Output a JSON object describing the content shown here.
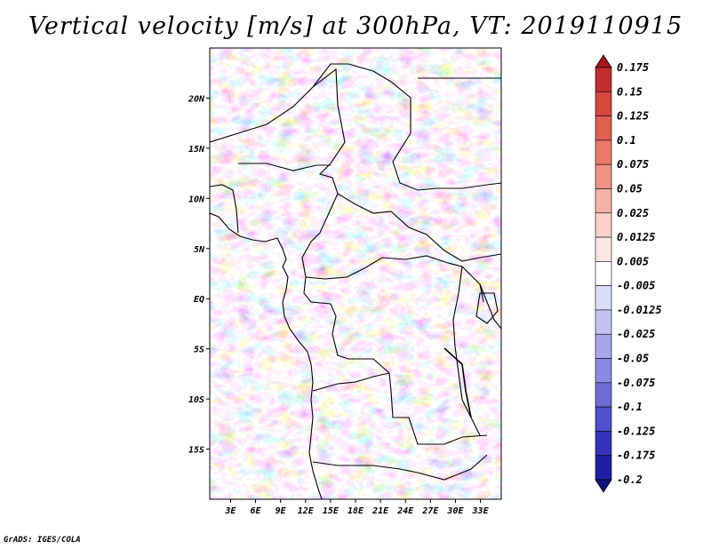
{
  "title": "Vertical velocity [m/s] at 300hPa, VT: 2019110915",
  "credit": "GrADS: IGES/COLA",
  "map": {
    "lat_labels": [
      {
        "label": "20N",
        "lat": 20
      },
      {
        "label": "15N",
        "lat": 15
      },
      {
        "label": "10N",
        "lat": 10
      },
      {
        "label": "5N",
        "lat": 5
      },
      {
        "label": "EQ",
        "lat": 0
      },
      {
        "label": "5S",
        "lat": -5
      },
      {
        "label": "10S",
        "lat": -10
      },
      {
        "label": "15S",
        "lat": -15
      }
    ],
    "lon_labels": [
      {
        "label": "3E",
        "lon": 3
      },
      {
        "label": "6E",
        "lon": 6
      },
      {
        "label": "9E",
        "lon": 9
      },
      {
        "label": "12E",
        "lon": 12
      },
      {
        "label": "15E",
        "lon": 15
      },
      {
        "label": "18E",
        "lon": 18
      },
      {
        "label": "21E",
        "lon": 21
      },
      {
        "label": "24E",
        "lon": 24
      },
      {
        "label": "27E",
        "lon": 27
      },
      {
        "label": "30E",
        "lon": 30
      },
      {
        "label": "33E",
        "lon": 33
      }
    ],
    "lon_range": [
      0.5,
      35.5
    ],
    "lat_range": [
      -20,
      25
    ]
  },
  "colorbar": {
    "labels": [
      "0.175",
      "0.15",
      "0.125",
      "0.1",
      "0.075",
      "0.05",
      "0.025",
      "0.0125",
      "0.005",
      "-0.005",
      "-0.0125",
      "-0.025",
      "-0.05",
      "-0.075",
      "-0.1",
      "-0.125",
      "-0.175",
      "-0.2"
    ],
    "colors": [
      "#a8161c",
      "#c22d2e",
      "#d4483f",
      "#e0604f",
      "#e97a69",
      "#f09385",
      "#f6b1a6",
      "#fbd0c9",
      "#fde6e2",
      "#ffffff",
      "#dcdcf7",
      "#c3c3f2",
      "#a6a6ec",
      "#8a8ae4",
      "#6c6cd9",
      "#5050cb",
      "#3434b8",
      "#1e1ea0",
      "#12127c"
    ]
  }
}
